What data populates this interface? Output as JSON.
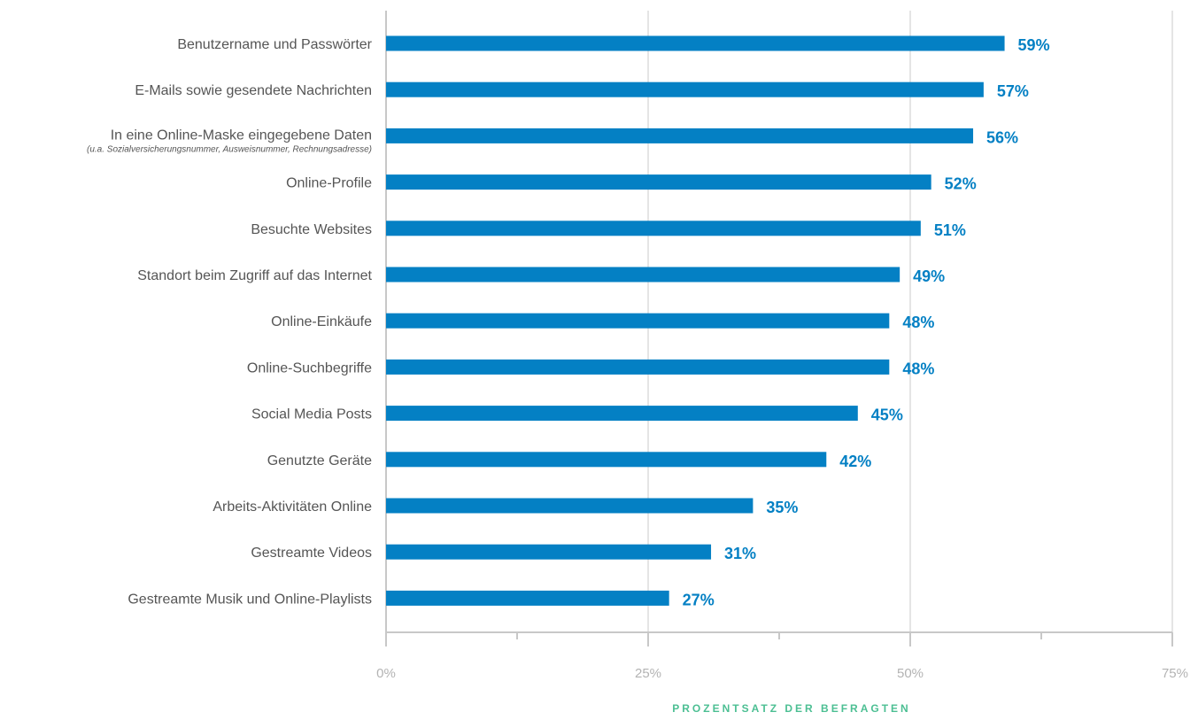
{
  "colors": {
    "bar": "#0480c4",
    "value_label": "#0480c4",
    "axis_title": "#4cbf93",
    "grid": "#e5e5e5",
    "axis": "#c8c8c8"
  },
  "chart_data": {
    "type": "bar",
    "orientation": "horizontal",
    "categories": [
      "Benutzername und Passwörter",
      "E-Mails sowie gesendete Nachrichten",
      "In eine Online-Maske eingegebene Daten",
      "Online-Profile",
      "Besuchte Websites",
      "Standort beim Zugriff auf das Internet",
      "Online-Einkäufe",
      "Online-Suchbegriffe",
      "Social Media Posts",
      "Genutzte Geräte",
      "Arbeits-Aktivitäten Online",
      "Gestreamte Videos",
      "Gestreamte Musik und Online-Playlists"
    ],
    "category_notes": [
      "",
      "",
      "(u.a. Sozialversicherungsnummer, Ausweisnummer, Rechnungsadresse)",
      "",
      "",
      "",
      "",
      "",
      "",
      "",
      "",
      "",
      ""
    ],
    "values": [
      59,
      57,
      56,
      52,
      51,
      49,
      48,
      48,
      45,
      42,
      35,
      31,
      27
    ],
    "value_labels": [
      "59%",
      "57%",
      "56%",
      "52%",
      "51%",
      "49%",
      "48%",
      "48%",
      "45%",
      "42%",
      "35%",
      "31%",
      "27%"
    ],
    "xlim": [
      0,
      75
    ],
    "xticks": [
      0,
      25,
      50,
      75
    ],
    "xtick_labels": [
      "0%",
      "25%",
      "50%",
      "75%"
    ],
    "minor_ticks": [
      12.5,
      37.5,
      62.5
    ],
    "xlabel": "PROZENTSATZ DER BEFRAGTEN",
    "grid": true
  }
}
